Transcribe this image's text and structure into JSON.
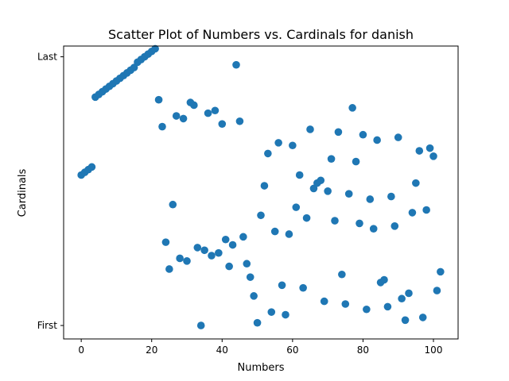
{
  "chart_data": {
    "type": "scatter",
    "title": "Scatter Plot of Numbers vs. Cardinals for danish",
    "xlabel": "Numbers",
    "ylabel": "Cardinals",
    "xlim": [
      -5,
      107
    ],
    "ylim": [
      -5,
      104
    ],
    "xticks": [
      0,
      20,
      40,
      60,
      80,
      100
    ],
    "yticks": [
      {
        "value": 0,
        "label": "First"
      },
      {
        "value": 100,
        "label": "Last"
      }
    ],
    "grid": false,
    "series": [
      {
        "color": "#1f77b4",
        "points": [
          [
            0,
            56
          ],
          [
            1,
            57
          ],
          [
            2,
            58
          ],
          [
            3,
            59
          ],
          [
            4,
            85
          ],
          [
            5,
            86
          ],
          [
            6,
            87
          ],
          [
            7,
            88
          ],
          [
            8,
            89
          ],
          [
            9,
            90
          ],
          [
            10,
            91
          ],
          [
            11,
            92
          ],
          [
            12,
            93
          ],
          [
            13,
            94
          ],
          [
            14,
            95
          ],
          [
            15,
            96
          ],
          [
            16,
            98
          ],
          [
            17,
            99
          ],
          [
            18,
            100
          ],
          [
            19,
            101
          ],
          [
            20,
            102
          ],
          [
            21,
            103
          ],
          [
            22,
            84
          ],
          [
            23,
            74
          ],
          [
            24,
            31
          ],
          [
            25,
            21
          ],
          [
            26,
            45
          ],
          [
            27,
            78
          ],
          [
            28,
            25
          ],
          [
            29,
            77
          ],
          [
            30,
            24
          ],
          [
            31,
            83
          ],
          [
            32,
            82
          ],
          [
            33,
            29
          ],
          [
            34,
            0
          ],
          [
            35,
            28
          ],
          [
            36,
            79
          ],
          [
            37,
            26
          ],
          [
            38,
            80
          ],
          [
            39,
            27
          ],
          [
            40,
            75
          ],
          [
            41,
            32
          ],
          [
            42,
            22
          ],
          [
            43,
            30
          ],
          [
            44,
            97
          ],
          [
            45,
            76
          ],
          [
            46,
            33
          ],
          [
            47,
            23
          ],
          [
            48,
            18
          ],
          [
            49,
            11
          ],
          [
            50,
            1
          ],
          [
            51,
            41
          ],
          [
            52,
            52
          ],
          [
            53,
            64
          ],
          [
            54,
            5
          ],
          [
            55,
            35
          ],
          [
            56,
            68
          ],
          [
            57,
            15
          ],
          [
            58,
            4
          ],
          [
            59,
            34
          ],
          [
            60,
            67
          ],
          [
            61,
            44
          ],
          [
            62,
            56
          ],
          [
            63,
            14
          ],
          [
            64,
            40
          ],
          [
            65,
            73
          ],
          [
            66,
            51
          ],
          [
            67,
            53
          ],
          [
            68,
            54
          ],
          [
            69,
            9
          ],
          [
            70,
            50
          ],
          [
            71,
            62
          ],
          [
            72,
            39
          ],
          [
            73,
            72
          ],
          [
            74,
            19
          ],
          [
            75,
            8
          ],
          [
            76,
            49
          ],
          [
            77,
            81
          ],
          [
            78,
            61
          ],
          [
            79,
            38
          ],
          [
            80,
            71
          ],
          [
            81,
            6
          ],
          [
            82,
            47
          ],
          [
            83,
            36
          ],
          [
            84,
            69
          ],
          [
            85,
            16
          ],
          [
            86,
            17
          ],
          [
            87,
            7
          ],
          [
            88,
            48
          ],
          [
            89,
            37
          ],
          [
            90,
            70
          ],
          [
            91,
            10
          ],
          [
            92,
            2
          ],
          [
            93,
            12
          ],
          [
            94,
            42
          ],
          [
            95,
            53
          ],
          [
            96,
            65
          ],
          [
            97,
            3
          ],
          [
            98,
            43
          ],
          [
            99,
            66
          ],
          [
            100,
            63
          ],
          [
            101,
            13
          ],
          [
            102,
            20
          ]
        ]
      }
    ]
  }
}
